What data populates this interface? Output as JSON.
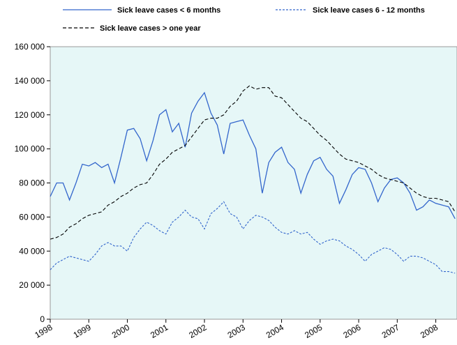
{
  "chart_data": {
    "type": "line",
    "x": [
      1998,
      1998.167,
      1998.333,
      1998.5,
      1998.667,
      1998.833,
      1999,
      1999.167,
      1999.333,
      1999.5,
      1999.667,
      1999.833,
      2000,
      2000.167,
      2000.333,
      2000.5,
      2000.667,
      2000.833,
      2001,
      2001.167,
      2001.333,
      2001.5,
      2001.667,
      2001.833,
      2002,
      2002.167,
      2002.333,
      2002.5,
      2002.667,
      2002.833,
      2003,
      2003.167,
      2003.333,
      2003.5,
      2003.667,
      2003.833,
      2004,
      2004.167,
      2004.333,
      2004.5,
      2004.667,
      2004.833,
      2005,
      2005.167,
      2005.333,
      2005.5,
      2005.667,
      2005.833,
      2006,
      2006.167,
      2006.333,
      2006.5,
      2006.667,
      2006.833,
      2007,
      2007.167,
      2007.333,
      2007.5,
      2007.667,
      2007.833,
      2008,
      2008.167,
      2008.333,
      2008.5
    ],
    "series": [
      {
        "name": "Sick leave cases < 6 months",
        "color": "#3366cc",
        "style": "solid",
        "values": [
          72000,
          80000,
          80000,
          70000,
          80000,
          91000,
          90000,
          92000,
          89000,
          91000,
          80000,
          95000,
          111000,
          112000,
          106000,
          93000,
          105000,
          120000,
          123000,
          110000,
          115000,
          101000,
          121000,
          128000,
          133000,
          121000,
          114000,
          97000,
          115000,
          116000,
          117000,
          108000,
          100000,
          74000,
          92000,
          98000,
          101000,
          92000,
          88000,
          74000,
          85000,
          93000,
          95000,
          88000,
          84000,
          68000,
          76000,
          85000,
          89000,
          88000,
          80000,
          69000,
          77000,
          82000,
          83000,
          80000,
          74000,
          64000,
          66000,
          70000,
          68000,
          67000,
          66000,
          59000
        ]
      },
      {
        "name": "Sick leave cases 6 - 12 months",
        "color": "#3366cc",
        "style": "dotted",
        "values": [
          29000,
          33000,
          35000,
          37000,
          36000,
          35000,
          34000,
          38000,
          43000,
          45000,
          43000,
          43000,
          40000,
          48000,
          53000,
          57000,
          55000,
          52000,
          50000,
          57000,
          60000,
          64000,
          60000,
          59000,
          53000,
          62000,
          65000,
          69000,
          62000,
          60000,
          53000,
          58000,
          61000,
          60000,
          58000,
          54000,
          51000,
          50000,
          52000,
          50000,
          51000,
          47000,
          44000,
          46000,
          47000,
          46000,
          43000,
          41000,
          38000,
          34000,
          38000,
          40000,
          42000,
          41000,
          38000,
          34000,
          37000,
          37000,
          36000,
          34000,
          32000,
          28000,
          28000,
          27000
        ]
      },
      {
        "name": "Sick leave cases > one year",
        "color": "#000000",
        "style": "dashed",
        "values": [
          47000,
          48000,
          50000,
          54000,
          56000,
          59000,
          61000,
          62000,
          63000,
          67000,
          69000,
          72000,
          74000,
          77000,
          79000,
          80000,
          85000,
          91000,
          94000,
          98000,
          100000,
          102000,
          107000,
          112000,
          117000,
          118000,
          118000,
          120000,
          125000,
          128000,
          134000,
          137000,
          135000,
          136000,
          136000,
          131000,
          130000,
          126000,
          122000,
          118000,
          116000,
          112000,
          108000,
          105000,
          101000,
          97000,
          94000,
          93000,
          92000,
          90000,
          88000,
          85000,
          83000,
          82000,
          81000,
          80000,
          77000,
          74000,
          72000,
          71000,
          71000,
          70000,
          69000,
          63000
        ]
      }
    ],
    "xlim": [
      1998,
      2008.55
    ],
    "xticks": [
      1998,
      1999,
      2000,
      2001,
      2002,
      2003,
      2004,
      2005,
      2006,
      2007,
      2008
    ],
    "ylim": [
      0,
      160000
    ],
    "yticks": [
      0,
      {
        "value": 20000,
        "label": "20 000"
      },
      {
        "value": 40000,
        "label": "40 000"
      },
      {
        "value": 60000,
        "label": "60 000"
      },
      {
        "value": 80000,
        "label": "80 000"
      },
      {
        "value": 100000,
        "label": "100 000"
      },
      {
        "value": 120000,
        "label": "120 000"
      },
      {
        "value": 140000,
        "label": "140 000"
      },
      {
        "value": 160000,
        "label": "160 000"
      }
    ],
    "plot_background": "#e6f7f7"
  }
}
